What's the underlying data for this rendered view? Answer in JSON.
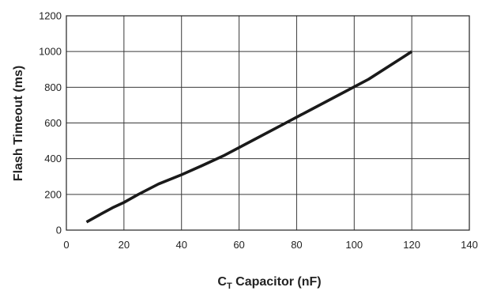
{
  "chart_data": {
    "type": "line",
    "xlabel_main": "C",
    "xlabel_sub": "T",
    "xlabel_rest": " Capacitor (nF)",
    "ylabel": "Flash Timeout (ms)",
    "xlim": [
      0,
      140
    ],
    "ylim": [
      0,
      1200
    ],
    "xticks": [
      0,
      20,
      40,
      60,
      80,
      100,
      120,
      140
    ],
    "yticks": [
      0,
      200,
      400,
      600,
      800,
      1000,
      1200
    ],
    "grid": true,
    "series": [
      {
        "color": "#1a1a1a",
        "x": [
          7,
          12,
          16,
          20,
          25,
          32,
          40,
          47,
          55,
          65,
          75,
          85,
          95,
          105,
          120
        ],
        "y": [
          45,
          90,
          125,
          155,
          200,
          258,
          310,
          360,
          420,
          505,
          590,
          675,
          760,
          845,
          1000
        ]
      }
    ]
  }
}
